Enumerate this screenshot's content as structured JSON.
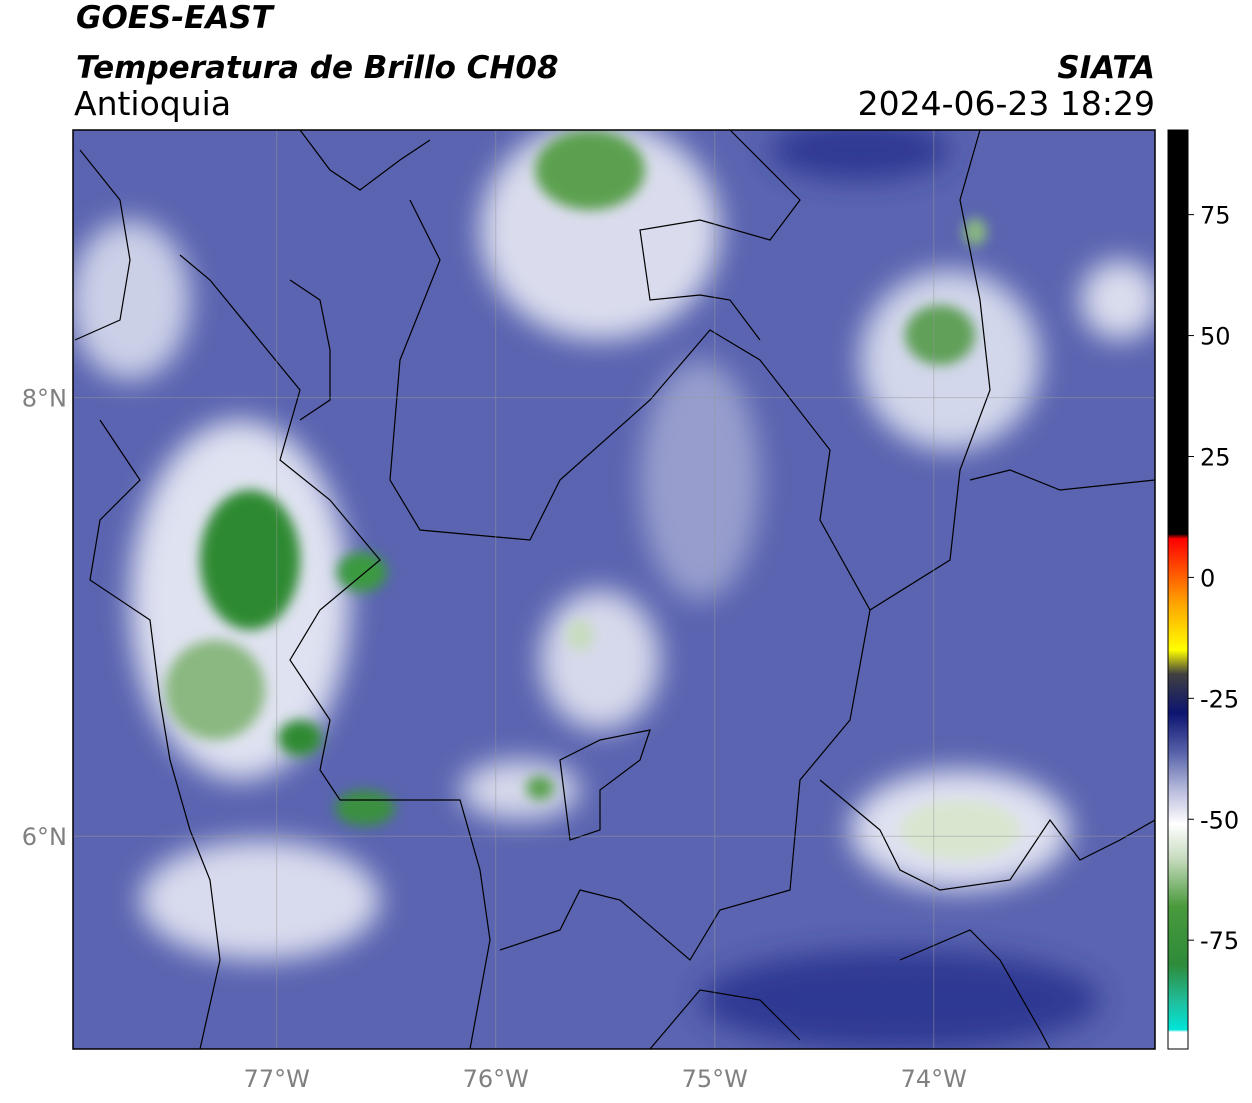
{
  "header": {
    "title": "GOES-EAST",
    "subtitle": "Temperatura de Brillo CH08",
    "region": "Antioquia",
    "source": "SIATA",
    "datetime": "2024-06-23 18:29"
  },
  "map": {
    "xlim": [
      -77.93,
      -72.99
    ],
    "ylim": [
      5.03,
      9.22
    ],
    "xticks": [
      {
        "value": -77,
        "label": "77°W"
      },
      {
        "value": -76,
        "label": "76°W"
      },
      {
        "value": -75,
        "label": "75°W"
      },
      {
        "value": -74,
        "label": "74°W"
      }
    ],
    "yticks": [
      {
        "value": 6,
        "label": "6°N"
      },
      {
        "value": 8,
        "label": "8°N"
      }
    ],
    "grid": true
  },
  "colorbar": {
    "lim": [
      -97.5,
      92.5
    ],
    "ticks": [
      75,
      50,
      25,
      0,
      -25,
      -50,
      -75
    ],
    "colormap": [
      {
        "value": -97.5,
        "color": "#ffffff"
      },
      {
        "value": -94,
        "color": "#ffffff"
      },
      {
        "value": -93.5,
        "color": "#00e5d8"
      },
      {
        "value": -88,
        "color": "#1fc0a0"
      },
      {
        "value": -80,
        "color": "#2e8b3a"
      },
      {
        "value": -68,
        "color": "#4a9a3c"
      },
      {
        "value": -58,
        "color": "#c8dcc0"
      },
      {
        "value": -51,
        "color": "#ffffff"
      },
      {
        "value": -44,
        "color": "#b8bcdc"
      },
      {
        "value": -36,
        "color": "#5560a8"
      },
      {
        "value": -28,
        "color": "#0c1470"
      },
      {
        "value": -20,
        "color": "#404040"
      },
      {
        "value": -15,
        "color": "#ffff00"
      },
      {
        "value": -5,
        "color": "#ffa000"
      },
      {
        "value": 8,
        "color": "#ff0000"
      },
      {
        "value": 9,
        "color": "#000000"
      },
      {
        "value": 92.5,
        "color": "#000000"
      }
    ]
  }
}
